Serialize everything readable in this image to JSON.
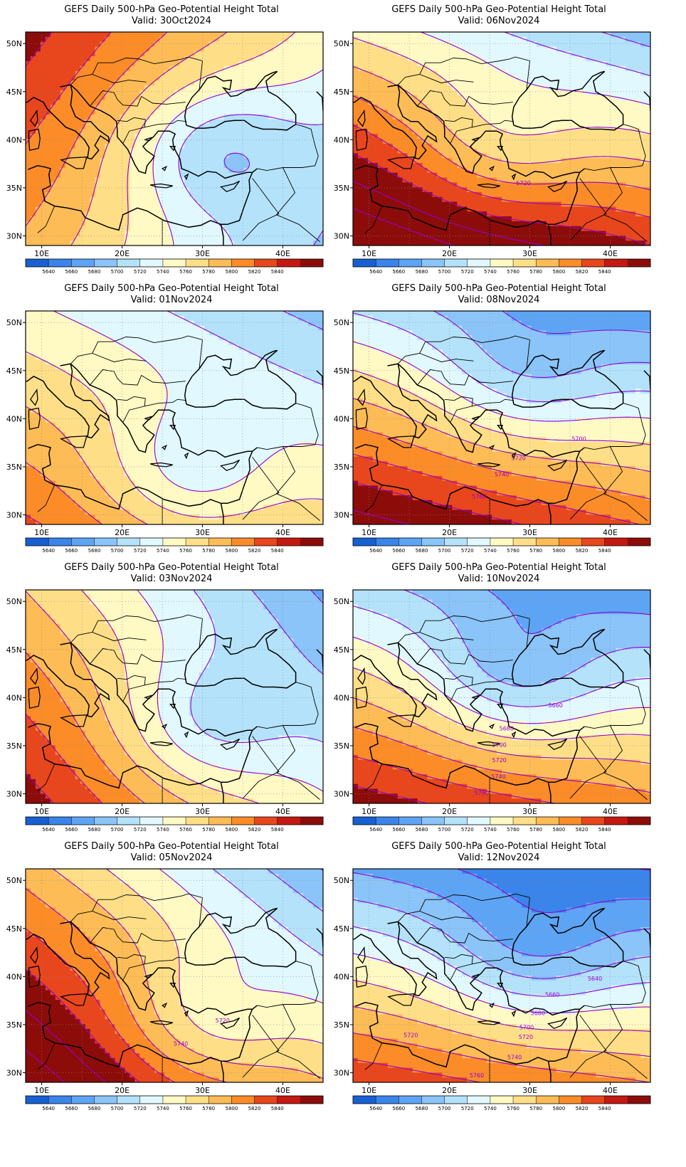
{
  "panels": [
    {
      "id": "p1",
      "title": "GEFS Daily 500-hPa Geo-Potential Height Total",
      "valid": "Valid: 30Oct2024",
      "base": 5775,
      "ampx": -2.6,
      "ampy": 2.4,
      "trough_x": 31,
      "trough_y": 39,
      "trough_depth": 55,
      "labels": []
    },
    {
      "id": "p2",
      "title": "GEFS Daily 500-hPa Geo-Potential Height Total",
      "valid": "Valid: 01Nov2024",
      "base": 5760,
      "ampx": -1.4,
      "ampy": -3.6,
      "trough_x": 28,
      "trough_y": 34,
      "trough_depth": 45,
      "labels": []
    },
    {
      "id": "p3",
      "title": "GEFS Daily 500-hPa Geo-Potential Height Total",
      "valid": "Valid: 03Nov2024",
      "base": 5765,
      "ampx": -2.8,
      "ampy": -3.2,
      "trough_x": 30,
      "trough_y": 37,
      "trough_depth": 45,
      "labels": []
    },
    {
      "id": "p4",
      "title": "GEFS Daily 500-hPa Geo-Potential Height Total",
      "valid": "Valid: 05Nov2024",
      "base": 5790,
      "ampx": -3.0,
      "ampy": -4.8,
      "trough_x": 30,
      "trough_y": 35,
      "trough_depth": 45,
      "labels": [
        {
          "text": "5720",
          "lon": 32.5,
          "lat": 35.2
        },
        {
          "text": "5740",
          "lon": 27.3,
          "lat": 32.8
        }
      ]
    },
    {
      "id": "p5",
      "title": "GEFS Daily 500-hPa Geo-Potential Height Total",
      "valid": "Valid: 06Nov2024",
      "base": 5800,
      "ampx": -1.8,
      "ampy": -6.8,
      "trough_x": 26,
      "trough_y": 39,
      "trough_depth": 35,
      "labels": [
        {
          "text": "5720",
          "lon": 29.2,
          "lat": 35.3
        }
      ]
    },
    {
      "id": "p6",
      "title": "GEFS Daily 500-hPa Geo-Potential Height Total",
      "valid": "Valid: 08Nov2024",
      "base": 5770,
      "ampx": -1.4,
      "ampy": -6.8,
      "trough_x": 29,
      "trough_y": 44,
      "trough_depth": 35,
      "labels": [
        {
          "text": "5700",
          "lon": 36.1,
          "lat": 37.7
        },
        {
          "text": "5720",
          "lon": 28.6,
          "lat": 35.7
        },
        {
          "text": "5740",
          "lon": 26.5,
          "lat": 34.0
        },
        {
          "text": "5760",
          "lon": 23.7,
          "lat": 31.7
        }
      ]
    },
    {
      "id": "p7",
      "title": "GEFS Daily 500-hPa Geo-Potential Height Total",
      "valid": "Valid: 10Nov2024",
      "base": 5760,
      "ampx": -1.2,
      "ampy": -6.4,
      "trough_x": 28,
      "trough_y": 42,
      "trough_depth": 50,
      "labels": [
        {
          "text": "5660",
          "lon": 33.2,
          "lat": 39.0
        },
        {
          "text": "5680",
          "lon": 27.1,
          "lat": 36.6
        },
        {
          "text": "5700",
          "lon": 26.2,
          "lat": 34.9
        },
        {
          "text": "5720",
          "lon": 26.2,
          "lat": 33.3
        },
        {
          "text": "5740",
          "lon": 26.1,
          "lat": 31.6
        },
        {
          "text": "5760",
          "lon": 24.0,
          "lat": 29.9
        }
      ]
    },
    {
      "id": "p8",
      "title": "GEFS Daily 500-hPa Geo-Potential Height Total",
      "valid": "Valid: 12Nov2024",
      "base": 5740,
      "ampx": -1.0,
      "ampy": -7.2,
      "trough_x": 30,
      "trough_y": 42,
      "trough_depth": 40,
      "labels": [
        {
          "text": "5640",
          "lon": 38.1,
          "lat": 39.6
        },
        {
          "text": "5660",
          "lon": 32.8,
          "lat": 37.9
        },
        {
          "text": "5680",
          "lon": 31.0,
          "lat": 36.0
        },
        {
          "text": "5700",
          "lon": 29.6,
          "lat": 34.5
        },
        {
          "text": "5720",
          "lon": 29.5,
          "lat": 33.5
        },
        {
          "text": "5720",
          "lon": 15.2,
          "lat": 33.7
        },
        {
          "text": "5740",
          "lon": 28.1,
          "lat": 31.4
        },
        {
          "text": "5760",
          "lon": 23.4,
          "lat": 29.5
        }
      ]
    }
  ],
  "lon_ticks": [
    "10E",
    "20E",
    "30E",
    "40E"
  ],
  "lat_ticks": [
    "30N",
    "35N",
    "40N",
    "45N",
    "50N"
  ],
  "colorbar_labels": [
    "5640",
    "5660",
    "5680",
    "5700",
    "5720",
    "5740",
    "5760",
    "5780",
    "5800",
    "5820",
    "5840"
  ],
  "colors": {
    "levels": [
      "#1660d2",
      "#3a84ea",
      "#5ea4f4",
      "#8ac4f8",
      "#b4e2fb",
      "#e0f8fe",
      "#fff9c4",
      "#fedf88",
      "#fdbc56",
      "#fb8c28",
      "#e8461c",
      "#c41812",
      "#8c0c0a"
    ],
    "contour": "#9400d3",
    "coast": "#000000"
  }
}
